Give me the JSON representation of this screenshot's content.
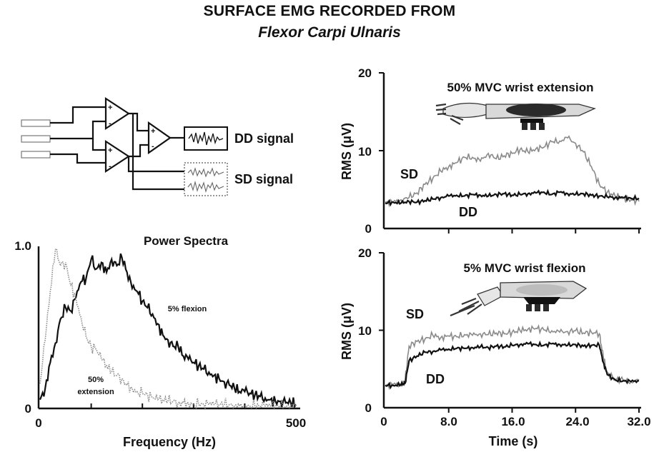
{
  "header": {
    "title": "SURFACE EMG RECORDED FROM",
    "subtitle": "Flexor Carpi Ulnaris"
  },
  "diagram": {
    "dd_label": "DD signal",
    "sd_label": "SD signal",
    "plus": "+",
    "minus": "-"
  },
  "colors": {
    "dark": "#111111",
    "light": "#8a8a8a",
    "arm_fill": "#d9d9d9",
    "muscle": "#2a2a2a"
  },
  "chart_data": [
    {
      "type": "line",
      "title": "Power Spectra",
      "xlabel": "Frequency (Hz)",
      "ylabel": "",
      "xlim": [
        0,
        500
      ],
      "ylim": [
        0,
        1.0
      ],
      "xticks": [
        0,
        500
      ],
      "xtick_labels": [
        "0",
        "500"
      ],
      "yticks": [
        0,
        1.0
      ],
      "ytick_labels": [
        "0",
        "1.0"
      ],
      "annotations": [
        "5% flexion",
        "50%",
        "extension"
      ],
      "series": [
        {
          "name": "5% flexion",
          "style": "solid",
          "x": [
            0,
            10,
            20,
            30,
            40,
            50,
            60,
            70,
            80,
            90,
            100,
            110,
            120,
            130,
            140,
            150,
            160,
            170,
            180,
            190,
            200,
            210,
            220,
            230,
            240,
            250,
            260,
            270,
            280,
            290,
            300,
            310,
            320,
            330,
            340,
            350,
            360,
            370,
            380,
            390,
            400,
            410,
            420,
            430,
            440,
            450,
            460,
            470,
            480,
            490,
            500
          ],
          "y": [
            0.05,
            0.12,
            0.28,
            0.4,
            0.55,
            0.62,
            0.6,
            0.68,
            0.78,
            0.8,
            0.92,
            0.86,
            0.9,
            0.84,
            0.92,
            0.88,
            0.93,
            0.84,
            0.74,
            0.72,
            0.66,
            0.62,
            0.58,
            0.52,
            0.45,
            0.42,
            0.38,
            0.38,
            0.32,
            0.3,
            0.28,
            0.26,
            0.24,
            0.22,
            0.2,
            0.18,
            0.16,
            0.14,
            0.12,
            0.1,
            0.1,
            0.09,
            0.08,
            0.07,
            0.06,
            0.05,
            0.04,
            0.04,
            0.03,
            0.03,
            0.02
          ]
        },
        {
          "name": "50% extension",
          "style": "dotted",
          "x": [
            0,
            10,
            20,
            30,
            40,
            50,
            60,
            70,
            80,
            90,
            100,
            110,
            120,
            130,
            140,
            150,
            160,
            170,
            180,
            190,
            200,
            210,
            220,
            230,
            240,
            250,
            260,
            270,
            280,
            290,
            300,
            310,
            320,
            330,
            340,
            350,
            360,
            370,
            380,
            390,
            400,
            410,
            420,
            430,
            440,
            450,
            460,
            470,
            480,
            490,
            500
          ],
          "y": [
            0.15,
            0.42,
            0.72,
            0.98,
            0.88,
            0.9,
            0.76,
            0.68,
            0.56,
            0.44,
            0.38,
            0.36,
            0.3,
            0.26,
            0.22,
            0.2,
            0.18,
            0.14,
            0.12,
            0.1,
            0.09,
            0.08,
            0.06,
            0.05,
            0.05,
            0.04,
            0.04,
            0.03,
            0.03,
            0.03,
            0.02,
            0.02,
            0.02,
            0.02,
            0.02,
            0.02,
            0.02,
            0.02,
            0.01,
            0.01,
            0.01,
            0.01,
            0.01,
            0.01,
            0.01,
            0.01,
            0.01,
            0.01,
            0.01,
            0.01,
            0.01
          ]
        }
      ]
    },
    {
      "type": "line",
      "title": "50% MVC wrist extension",
      "xlabel": "",
      "ylabel": "RMS (μV)",
      "xlim": [
        0,
        32
      ],
      "ylim": [
        0,
        20
      ],
      "xticks": [
        0,
        8,
        16,
        24,
        32
      ],
      "yticks": [
        0,
        10,
        20
      ],
      "ytick_labels": [
        "0",
        "10",
        "20"
      ],
      "series": [
        {
          "name": "SD",
          "style": "light",
          "x": [
            0,
            1,
            2,
            3,
            4,
            5,
            6,
            7,
            8,
            9,
            10,
            11,
            12,
            13,
            14,
            15,
            16,
            17,
            18,
            19,
            20,
            21,
            22,
            23,
            24,
            25,
            26,
            27,
            28,
            29,
            30,
            31,
            32
          ],
          "y": [
            3.3,
            3.3,
            3.6,
            3.9,
            4.5,
            5.6,
            6.4,
            7.3,
            7.9,
            8.4,
            9.1,
            9.1,
            8.6,
            9.6,
            8.9,
            9.3,
            9.6,
            10.1,
            9.8,
            10.2,
            10.4,
            11.1,
            11.2,
            11.6,
            10.9,
            9.8,
            7.9,
            5.6,
            4.6,
            4.1,
            3.8,
            3.6,
            3.4
          ]
        },
        {
          "name": "DD",
          "style": "dark",
          "x": [
            0,
            1,
            2,
            3,
            4,
            5,
            6,
            7,
            8,
            9,
            10,
            11,
            12,
            13,
            14,
            15,
            16,
            17,
            18,
            19,
            20,
            21,
            22,
            23,
            24,
            25,
            26,
            27,
            28,
            29,
            30,
            31,
            32
          ],
          "y": [
            3.2,
            3.3,
            3.2,
            3.4,
            3.3,
            3.5,
            3.7,
            3.9,
            4.1,
            4.2,
            4.1,
            4.3,
            4.2,
            4.1,
            4.3,
            4.4,
            4.2,
            4.3,
            4.4,
            4.5,
            4.6,
            4.3,
            4.6,
            4.4,
            4.3,
            4.4,
            4.2,
            4.1,
            4.0,
            3.9,
            3.9,
            3.8,
            3.8
          ]
        }
      ]
    },
    {
      "type": "line",
      "title": "5% MVC wrist flexion",
      "xlabel": "Time (s)",
      "ylabel": "RMS (μV)",
      "xlim": [
        0,
        32
      ],
      "ylim": [
        0,
        20
      ],
      "xticks": [
        0,
        8,
        16,
        24,
        32
      ],
      "xtick_labels": [
        "0",
        "8.0",
        "16.0",
        "24.0",
        "32.0"
      ],
      "yticks": [
        0,
        10,
        20
      ],
      "ytick_labels": [
        "0",
        "10",
        "20"
      ],
      "series": [
        {
          "name": "SD",
          "style": "light",
          "x": [
            0,
            1,
            2,
            2.5,
            3,
            4,
            5,
            6,
            7,
            8,
            9,
            10,
            11,
            12,
            13,
            14,
            15,
            16,
            17,
            18,
            19,
            20,
            21,
            22,
            23,
            24,
            25,
            26,
            27,
            27.5,
            28,
            29,
            30,
            31,
            32
          ],
          "y": [
            2.8,
            2.9,
            3.0,
            3.4,
            7.9,
            8.5,
            8.8,
            9.3,
            9.0,
            9.2,
            9.1,
            9.4,
            9.3,
            9.5,
            9.4,
            9.6,
            9.5,
            9.7,
            9.9,
            10.1,
            10.2,
            10.0,
            9.9,
            9.7,
            9.8,
            9.9,
            9.6,
            9.7,
            9.5,
            6.5,
            4.4,
            3.6,
            3.5,
            3.3,
            3.5
          ]
        },
        {
          "name": "DD",
          "style": "dark",
          "x": [
            0,
            1,
            2,
            2.5,
            3,
            4,
            5,
            6,
            7,
            8,
            9,
            10,
            11,
            12,
            13,
            14,
            15,
            16,
            17,
            18,
            19,
            20,
            21,
            22,
            23,
            24,
            25,
            26,
            27,
            27.5,
            28,
            29,
            30,
            31,
            32
          ],
          "y": [
            2.8,
            2.8,
            2.9,
            3.1,
            6.0,
            6.6,
            7.1,
            7.2,
            7.4,
            7.5,
            7.6,
            7.6,
            7.7,
            7.8,
            7.7,
            7.9,
            7.8,
            8.0,
            8.1,
            8.2,
            8.1,
            8.0,
            8.2,
            8.1,
            8.0,
            8.1,
            7.9,
            8.0,
            8.0,
            5.8,
            4.2,
            3.5,
            3.4,
            3.3,
            3.4
          ]
        }
      ]
    }
  ]
}
